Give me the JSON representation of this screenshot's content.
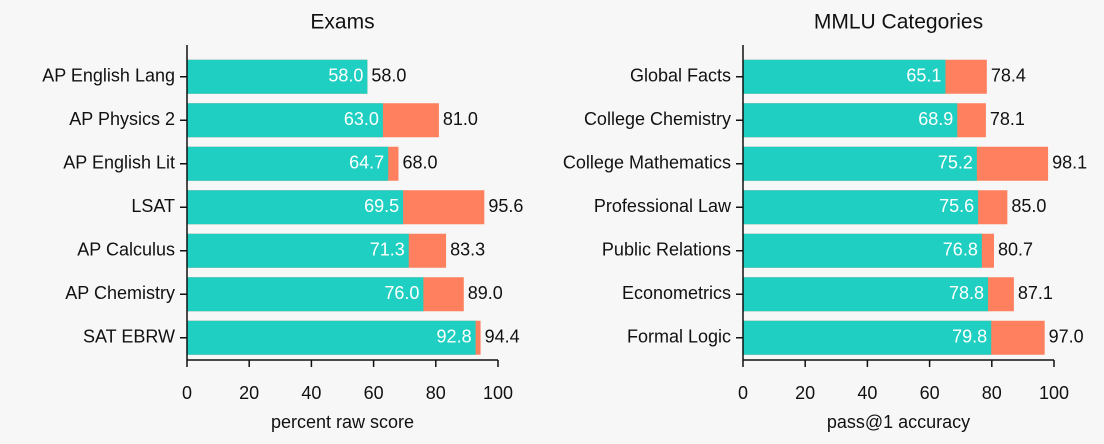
{
  "chart_data": [
    {
      "type": "bar",
      "title": "Exams",
      "xlabel": "percent raw score",
      "categories": [
        "AP English Lang",
        "AP Physics 2",
        "AP English Lit",
        "LSAT",
        "AP Calculus",
        "AP Chemistry",
        "SAT EBRW"
      ],
      "series": [
        {
          "color": "#1fcfc1",
          "values": [
            58.0,
            63.0,
            64.7,
            69.5,
            71.3,
            76.0,
            92.8
          ],
          "value_labels": [
            "58.0",
            "63.0",
            "64.7",
            "69.5",
            "71.3",
            "76.0",
            "92.8"
          ]
        },
        {
          "color": "#fe805f",
          "values": [
            58.0,
            81.0,
            68.0,
            95.6,
            83.3,
            89.0,
            94.4
          ],
          "value_labels": [
            "58.0",
            "81.0",
            "68.0",
            "95.6",
            "83.3",
            "89.0",
            "94.4"
          ]
        }
      ],
      "xlim": [
        0,
        100
      ],
      "xticks": [
        0,
        20,
        40,
        60,
        80,
        100
      ]
    },
    {
      "type": "bar",
      "title": "MMLU Categories",
      "xlabel": "pass@1 accuracy",
      "categories": [
        "Global Facts",
        "College Chemistry",
        "College Mathematics",
        "Professional Law",
        "Public Relations",
        "Econometrics",
        "Formal Logic"
      ],
      "series": [
        {
          "color": "#1fcfc1",
          "values": [
            65.1,
            68.9,
            75.2,
            75.6,
            76.8,
            78.8,
            79.8
          ],
          "value_labels": [
            "65.1",
            "68.9",
            "75.2",
            "75.6",
            "76.8",
            "78.8",
            "79.8"
          ]
        },
        {
          "color": "#fe805f",
          "values": [
            78.4,
            78.1,
            98.1,
            85.0,
            80.7,
            87.1,
            97.0
          ],
          "value_labels": [
            "78.4",
            "78.1",
            "98.1",
            "85.0",
            "80.7",
            "87.1",
            "97.0"
          ]
        }
      ],
      "xlim": [
        0,
        100
      ],
      "xticks": [
        0,
        20,
        40,
        60,
        80,
        100
      ]
    }
  ]
}
